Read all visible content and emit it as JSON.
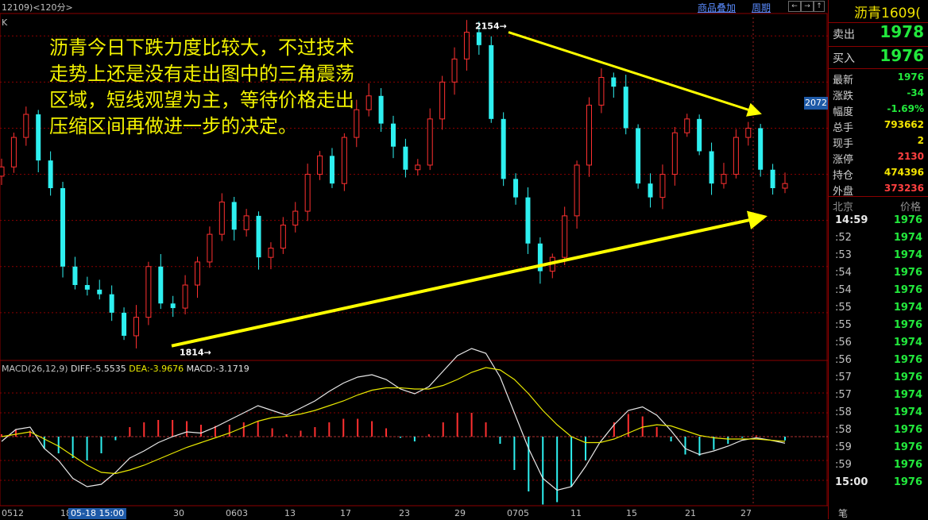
{
  "header": {
    "title": "12109)<120分>",
    "link_overlay": "商品叠加",
    "link_period": "周期",
    "nav_buttons": [
      "←",
      "→",
      "↑",
      "↓"
    ]
  },
  "chart_label": "K",
  "annotation_text": "沥青今日下跌力度比较大，不过技术\n走势上还是没有走出图中的三角震荡\n区域，短线观望为主，等待价格走出\n压缩区间再做进一步的决定。",
  "current_price_tag": "2072",
  "date_box": "05-18 15:00",
  "macd_title": {
    "name": "MACD(26,12,9)",
    "diff": "DIFF:-5.5535",
    "dea": "DEA:-3.9676",
    "macd": "MACD:-3.1719"
  },
  "colors": {
    "up": "#ff3030",
    "down": "#2ef0f0",
    "arrow": "#ffff00",
    "quote_green": "#22e83c",
    "quote_red": "#ff4040",
    "quote_yellow": "#f2e400",
    "grid": "#8b0000"
  },
  "sidebar": {
    "title": "沥青1609(",
    "sell": {
      "label": "卖出",
      "value": "1978"
    },
    "buy": {
      "label": "买入",
      "value": "1976"
    },
    "stats": [
      {
        "label": "最新",
        "value": "1976"
      },
      {
        "label": "涨跌",
        "value": "-34"
      },
      {
        "label": "幅度",
        "value": "-1.69%"
      },
      {
        "label": "总手",
        "value": "793662"
      },
      {
        "label": "现手",
        "value": "2"
      },
      {
        "label": "涨停",
        "value": "2130"
      },
      {
        "label": "持仓",
        "value": "474396"
      },
      {
        "label": "外盘",
        "value": "373236"
      }
    ],
    "ticks_header": {
      "time": "北京",
      "price": "价格"
    },
    "ticks": [
      {
        "time": "14:59",
        "price": "1976"
      },
      {
        "time": ":52",
        "price": "1974"
      },
      {
        "time": ":53",
        "price": "1974"
      },
      {
        "time": ":54",
        "price": "1976"
      },
      {
        "time": ":54",
        "price": "1976"
      },
      {
        "time": ":55",
        "price": "1974"
      },
      {
        "time": ":55",
        "price": "1976"
      },
      {
        "time": ":56",
        "price": "1974"
      },
      {
        "time": ":56",
        "price": "1976"
      },
      {
        "time": ":57",
        "price": "1976"
      },
      {
        "time": ":57",
        "price": "1974"
      },
      {
        "time": ":58",
        "price": "1974"
      },
      {
        "time": ":58",
        "price": "1976"
      },
      {
        "time": ":59",
        "price": "1976"
      },
      {
        "time": ":59",
        "price": "1976"
      },
      {
        "time": "15:00",
        "price": "1976"
      }
    ],
    "footer": "笔"
  },
  "chart_data": {
    "type": "candlestick",
    "x_tick_labels": [
      "0512",
      "18",
      "30",
      "0603",
      "13",
      "17",
      "23",
      "29",
      "0705",
      "11",
      "15",
      "21",
      "27"
    ],
    "y_range": [
      1800,
      2170
    ],
    "annotations": [
      {
        "text": "2154→",
        "value": 2154
      },
      {
        "text": "1814→",
        "value": 1814
      }
    ],
    "trendlines": [
      {
        "name": "resistance",
        "from": 2154,
        "to": 2066
      },
      {
        "name": "support",
        "from": 1814,
        "to": 1954
      }
    ],
    "anchors": [
      2008,
      2040,
      2065,
      2015,
      1985,
      1900,
      1880,
      1875,
      1870,
      1850,
      1825,
      1845,
      1900,
      1860,
      1855,
      1880,
      1905,
      1935,
      1970,
      1940,
      1955,
      1910,
      1920,
      1945,
      1960,
      2000,
      2020,
      1990,
      2040,
      2070,
      2085,
      2055,
      2030,
      2005,
      2010,
      2060,
      2100,
      2125,
      2154,
      2140,
      2060,
      1995,
      1975,
      1925,
      1895,
      1910,
      1955,
      2010,
      2075,
      2105,
      2095,
      2050,
      1990,
      1975,
      2000,
      2045,
      2060,
      2025,
      1990,
      2000,
      2040,
      2050,
      2005,
      1985,
      1990
    ],
    "macd": {
      "diff": [
        -4,
        6,
        8,
        -10,
        -20,
        -35,
        -42,
        -40,
        -30,
        -18,
        -12,
        -5,
        0,
        4,
        3,
        8,
        14,
        20,
        26,
        22,
        18,
        24,
        30,
        38,
        45,
        50,
        52,
        48,
        40,
        36,
        42,
        55,
        68,
        74,
        70,
        50,
        20,
        -10,
        -35,
        -45,
        -42,
        -25,
        -5,
        10,
        22,
        25,
        18,
        5,
        -10,
        -15,
        -12,
        -8,
        -3,
        -1,
        -3,
        -5.5535
      ],
      "dea": [
        0,
        2,
        4,
        -2,
        -8,
        -16,
        -24,
        -30,
        -31,
        -28,
        -24,
        -19,
        -14,
        -9,
        -5,
        -1,
        3,
        8,
        13,
        16,
        17,
        19,
        22,
        26,
        30,
        35,
        39,
        41,
        41,
        40,
        40,
        43,
        48,
        54,
        58,
        56,
        48,
        36,
        22,
        10,
        0,
        -5,
        -5,
        -2,
        3,
        8,
        10,
        9,
        5,
        1,
        -1,
        -2,
        -2,
        -2,
        -3,
        -3.9676
      ],
      "hist": [
        2,
        6,
        5,
        -10,
        -14,
        -18,
        -20,
        -14,
        -3,
        8,
        12,
        14,
        14,
        13,
        10,
        9,
        10,
        12,
        13,
        7,
        2,
        5,
        8,
        12,
        15,
        15,
        13,
        7,
        -1,
        -4,
        2,
        12,
        20,
        20,
        12,
        -6,
        -28,
        -46,
        -57,
        -55,
        -42,
        -20,
        0,
        12,
        19,
        17,
        8,
        -4,
        -15,
        -16,
        -11,
        -6,
        -1,
        1,
        0,
        -3.1719
      ]
    }
  }
}
